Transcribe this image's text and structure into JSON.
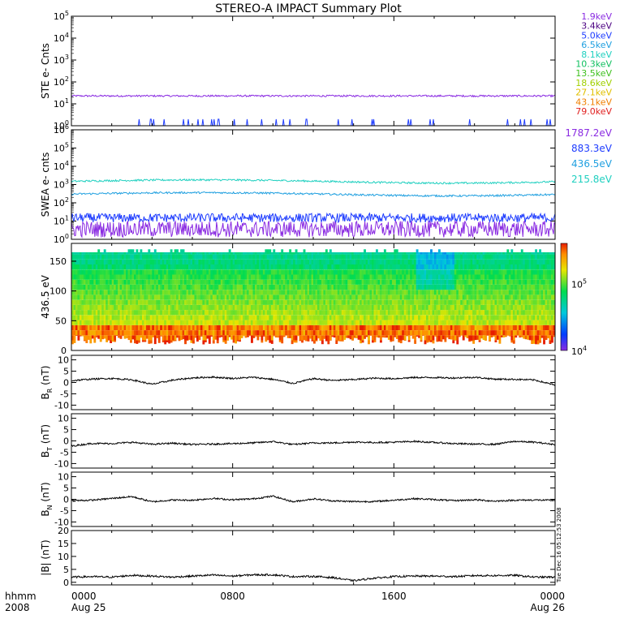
{
  "title": "STEREO-A IMPACT Summary Plot",
  "timestamp": "Tue Dec 16 05:12:53 2008",
  "time_axis": {
    "row1_label": "hhmm",
    "row2_label": "2008",
    "ticks": [
      {
        "top": "0000",
        "bottom": "Aug 25",
        "hours": 0
      },
      {
        "top": "0800",
        "bottom": "",
        "hours": 8
      },
      {
        "top": "1600",
        "bottom": "",
        "hours": 16
      },
      {
        "top": "0000",
        "bottom": "Aug 26",
        "hours": 24
      }
    ]
  },
  "chart_data": [
    {
      "type": "line",
      "id": "ste",
      "ylabel": "STE e- Cnts",
      "yscale": "log",
      "ylim": [
        1,
        100000
      ],
      "ytick_exponents": [
        0,
        1,
        2,
        3,
        4,
        5
      ],
      "legend": [
        {
          "label": "1.9keV",
          "color": "#8a2be2"
        },
        {
          "label": "3.4keV",
          "color": "#4b0082"
        },
        {
          "label": "5.0keV",
          "color": "#1e3cff"
        },
        {
          "label": "6.5keV",
          "color": "#20a0e0"
        },
        {
          "label": "8.1keV",
          "color": "#20d0c0"
        },
        {
          "label": "10.3keV",
          "color": "#10c060"
        },
        {
          "label": "13.5keV",
          "color": "#40c020"
        },
        {
          "label": "18.6keV",
          "color": "#a0d000"
        },
        {
          "label": "27.1keV",
          "color": "#e0c000"
        },
        {
          "label": "43.1keV",
          "color": "#f08000"
        },
        {
          "label": "79.0keV",
          "color": "#e02020"
        }
      ],
      "series": [
        {
          "color": "#8a2be2",
          "level": 23
        },
        {
          "color": "#1e3cff",
          "level": 1
        }
      ]
    },
    {
      "type": "line",
      "id": "swea",
      "ylabel": "SWEA e- cnts",
      "yscale": "log",
      "ylim": [
        1,
        1000000
      ],
      "ytick_exponents": [
        0,
        1,
        2,
        3,
        4,
        5,
        6
      ],
      "legend": [
        {
          "label": "1787.2eV",
          "color": "#8a2be2"
        },
        {
          "label": "883.3eV",
          "color": "#1e3cff"
        },
        {
          "label": "436.5eV",
          "color": "#20a0e0"
        },
        {
          "label": "215.8eV",
          "color": "#20d0c0"
        }
      ],
      "series": [
        {
          "color": "#20d0c0",
          "level": 1500
        },
        {
          "color": "#20a0e0",
          "level": 300
        },
        {
          "color": "#1e3cff",
          "level": 15
        },
        {
          "color": "#8a2be2",
          "level": 4
        }
      ]
    },
    {
      "type": "heatmap",
      "id": "pad",
      "ylabel": "436.5 eV",
      "ylim": [
        0,
        180
      ],
      "yticks": [
        0,
        50,
        100,
        150
      ],
      "colorbar": {
        "scale": "log",
        "range": [
          10000,
          400000
        ],
        "ticks": [
          {
            "base": "10",
            "exp": "4",
            "value": 10000
          },
          {
            "base": "10",
            "exp": "5",
            "value": 100000
          }
        ]
      }
    },
    {
      "type": "line",
      "id": "br",
      "ylabel": "B",
      "ylabel_sub": "R",
      "yunit": "(nT)",
      "ylim": [
        -12,
        12
      ],
      "yticks": [
        -10,
        -5,
        0,
        5,
        10
      ],
      "series": [
        {
          "color": "#000000",
          "values_hourly": [
            0.8,
            1.5,
            1.8,
            1.2,
            -0.8,
            1.0,
            2.0,
            2.4,
            1.8,
            2.3,
            1.4,
            -0.4,
            1.7,
            0.9,
            1.3,
            1.9,
            1.7,
            2.2,
            2.2,
            2.0,
            2.3,
            1.5,
            1.4,
            1.1,
            -1.2
          ]
        }
      ]
    },
    {
      "type": "line",
      "id": "bt",
      "ylabel": "B",
      "ylabel_sub": "T",
      "yunit": "(nT)",
      "ylim": [
        -12,
        12
      ],
      "yticks": [
        -10,
        -5,
        0,
        5,
        10
      ],
      "series": [
        {
          "color": "#000000",
          "values_hourly": [
            -2.3,
            -1.1,
            -1.2,
            -0.6,
            -1.5,
            -1.0,
            -1.6,
            -1.4,
            -1.2,
            -0.9,
            -0.3,
            -1.6,
            -0.9,
            -0.9,
            -0.5,
            -0.7,
            -0.6,
            -0.2,
            -0.7,
            -1.2,
            -1.4,
            -1.5,
            -0.2,
            -0.6,
            -1.6
          ]
        }
      ]
    },
    {
      "type": "line",
      "id": "bn",
      "ylabel": "B",
      "ylabel_sub": "N",
      "yunit": "(nT)",
      "ylim": [
        -12,
        12
      ],
      "yticks": [
        -10,
        -5,
        0,
        5,
        10
      ],
      "series": [
        {
          "color": "#000000",
          "values_hourly": [
            -0.6,
            -0.4,
            0.4,
            1.2,
            -1.1,
            -0.3,
            -0.4,
            0.4,
            -0.2,
            0.2,
            1.4,
            -1.1,
            0.2,
            -0.7,
            -1.0,
            -1.0,
            -0.4,
            0.3,
            -0.1,
            -0.6,
            -0.2,
            -0.8,
            -0.4,
            -0.3,
            -0.5
          ]
        }
      ]
    },
    {
      "type": "line",
      "id": "bmag",
      "ylabel": "|B|",
      "yunit": "(nT)",
      "ylim": [
        -1,
        20
      ],
      "yticks": [
        0,
        5,
        10,
        15,
        20
      ],
      "series": [
        {
          "color": "#000000",
          "values_hourly": [
            2.0,
            2.2,
            2.0,
            2.7,
            2.4,
            2.0,
            2.4,
            2.8,
            2.4,
            2.9,
            2.9,
            2.2,
            2.3,
            1.8,
            0.6,
            1.6,
            2.2,
            2.4,
            2.4,
            2.2,
            2.6,
            2.6,
            2.7,
            2.0,
            2.0
          ]
        }
      ]
    }
  ]
}
